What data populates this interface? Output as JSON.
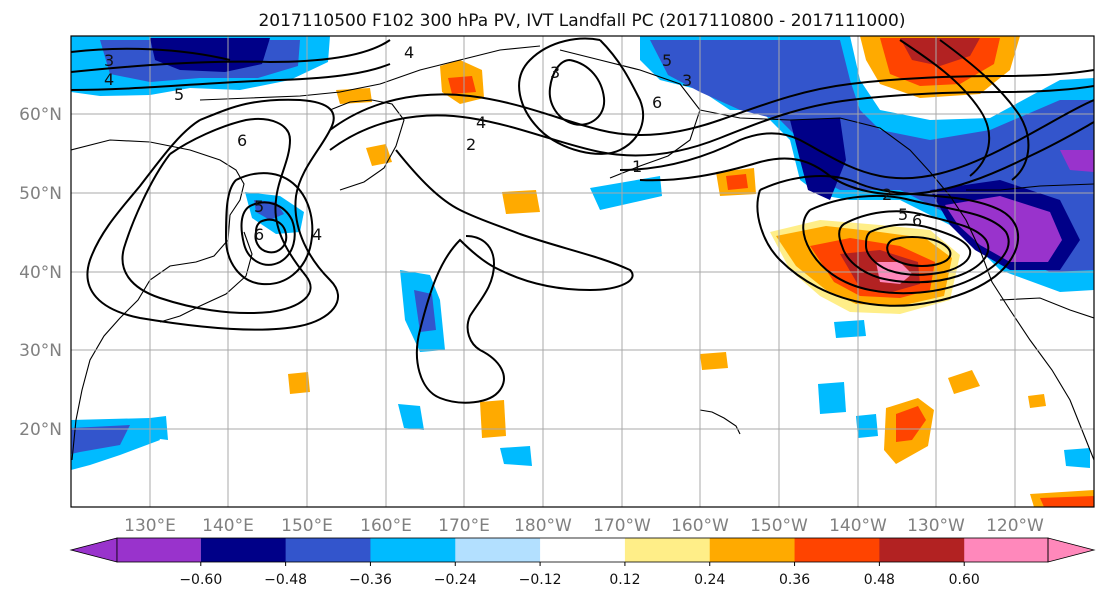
{
  "title": "2017110500 F102 300 hPa PV, IVT Landfall PC (2017110800 - 2017111000)",
  "lat_labels": [
    "60°N",
    "50°N",
    "40°N",
    "30°N",
    "20°N"
  ],
  "lon_labels": [
    "130°E",
    "140°E",
    "150°E",
    "160°E",
    "170°E",
    "180°W",
    "170°W",
    "160°W",
    "150°W",
    "140°W",
    "130°W",
    "120°W"
  ],
  "colorbar": {
    "tick_labels": [
      "−0.60",
      "−0.48",
      "−0.36",
      "−0.24",
      "−0.12",
      "0.12",
      "0.24",
      "0.36",
      "0.48",
      "0.60"
    ],
    "bins": [
      "#9933cc",
      "#000088",
      "#3355cc",
      "#00bbff",
      "#b3e0ff",
      "#ffffff",
      "#ffee88",
      "#ffaa00",
      "#ff4400",
      "#b22222",
      "#ff88bb"
    ],
    "extend_low": "#9933cc",
    "extend_high": "#ff88bb"
  },
  "contour_labels": [
    "3",
    "4",
    "5",
    "6",
    "5",
    "6",
    "4",
    "2",
    "1",
    "4",
    "6",
    "5",
    "3",
    "2",
    "5",
    "6",
    "4",
    "3"
  ]
}
